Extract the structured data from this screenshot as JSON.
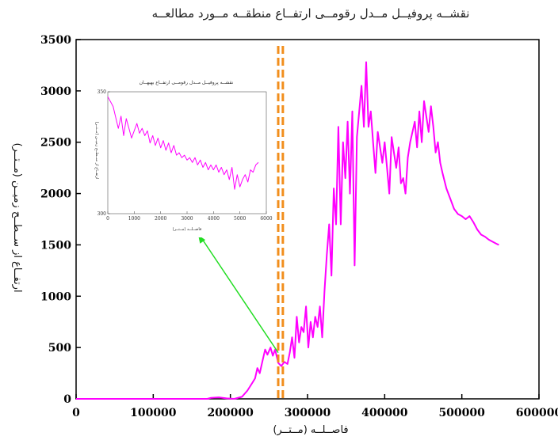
{
  "chart_data": [
    {
      "type": "line",
      "title": "نقشــه پروفیــل مــدل رقومــی ارتفــاع منطقــه مــورد مطالعــه",
      "xlabel": "فاصــلــه (مــتــر)",
      "ylabel": "ارتفــاع از ســطــح زمیــن (مــتــر)",
      "xlim": [
        0,
        600000
      ],
      "ylim": [
        0,
        3500
      ],
      "xticks": [
        "0",
        "100000",
        "200000",
        "300000",
        "400000",
        "500000",
        "600000"
      ],
      "yticks": [
        "0",
        "500",
        "1000",
        "1500",
        "2000",
        "2500",
        "3000",
        "3500"
      ],
      "series": [
        {
          "color": "#ff00ff",
          "x": [
            0,
            170000,
            175000,
            185000,
            195000,
            205000,
            215000,
            222000,
            228000,
            232000,
            235000,
            238000,
            242000,
            245000,
            248000,
            252000,
            255000,
            258000,
            262000,
            266000,
            270000,
            274000,
            277000,
            280000,
            283000,
            286000,
            289000,
            292000,
            295000,
            298000,
            301000,
            304000,
            307000,
            310000,
            313000,
            316000,
            319000,
            322000,
            325000,
            328000,
            331000,
            334000,
            337000,
            340000,
            343000,
            346000,
            349000,
            352000,
            355000,
            358000,
            361000,
            364000,
            367000,
            370000,
            373000,
            376000,
            379000,
            382000,
            385000,
            388000,
            391000,
            394000,
            397000,
            400000,
            403000,
            406000,
            409000,
            412000,
            415000,
            418000,
            421000,
            424000,
            427000,
            430000,
            433000,
            436000,
            439000,
            442000,
            445000,
            448000,
            451000,
            454000,
            457000,
            460000,
            463000,
            466000,
            469000,
            472000,
            475000,
            480000,
            485000,
            490000,
            495000,
            500000,
            505000,
            510000,
            515000,
            520000,
            525000,
            530000,
            535000,
            540000,
            545000,
            548000
          ],
          "y": [
            0,
            0,
            10,
            15,
            5,
            0,
            20,
            80,
            150,
            200,
            300,
            250,
            380,
            480,
            430,
            500,
            420,
            480,
            350,
            320,
            360,
            340,
            450,
            600,
            400,
            800,
            550,
            700,
            650,
            900,
            500,
            750,
            600,
            800,
            700,
            900,
            600,
            1050,
            1400,
            1700,
            1200,
            2050,
            1700,
            2650,
            1700,
            2500,
            2150,
            2700,
            2000,
            2800,
            1300,
            2550,
            2800,
            3050,
            2650,
            3280,
            2650,
            2800,
            2500,
            2200,
            2600,
            2450,
            2300,
            2500,
            2250,
            2000,
            2550,
            2400,
            2250,
            2450,
            2100,
            2150,
            2000,
            2350,
            2500,
            2600,
            2700,
            2450,
            2800,
            2500,
            2900,
            2750,
            2600,
            2850,
            2650,
            2400,
            2500,
            2300,
            2200,
            2050,
            1950,
            1850,
            1800,
            1780,
            1750,
            1780,
            1720,
            1650,
            1600,
            1580,
            1550,
            1530,
            1510,
            1500
          ]
        }
      ]
    },
    {
      "type": "line",
      "title": "نقشــه پروفیــل مــدل رقومــی ارتفــاع بهبهــان",
      "xlabel": "فاصــلــه (مــتــر)",
      "ylabel": "ارتفــاع از ســطــح زمیــن (مــتــر)",
      "xlim": [
        0,
        6000
      ],
      "ylim": [
        300,
        350
      ],
      "xticks": [
        "0",
        "1000",
        "2000",
        "3000",
        "4000",
        "5000",
        "6000"
      ],
      "yticks": [
        "300",
        "350"
      ],
      "series": [
        {
          "color": "#ff00ff",
          "x": [
            0,
            200,
            400,
            500,
            600,
            700,
            800,
            900,
            1000,
            1100,
            1200,
            1300,
            1400,
            1500,
            1600,
            1700,
            1800,
            1900,
            2000,
            2100,
            2200,
            2300,
            2400,
            2500,
            2600,
            2700,
            2800,
            2900,
            3000,
            3100,
            3200,
            3300,
            3400,
            3500,
            3600,
            3700,
            3800,
            3900,
            4000,
            4100,
            4200,
            4300,
            4400,
            4500,
            4600,
            4700,
            4800,
            4900,
            5000,
            5100,
            5200,
            5300,
            5400,
            5500,
            5600,
            5700
          ],
          "y": [
            348,
            344,
            335,
            340,
            332,
            339,
            335,
            331,
            334,
            337,
            333,
            335,
            332,
            334,
            329,
            332,
            328,
            331,
            327,
            330,
            326,
            329,
            325,
            328,
            324,
            325,
            323,
            324,
            322,
            323,
            321,
            323,
            320,
            322,
            319,
            321,
            318,
            320,
            318,
            320,
            317,
            319,
            316,
            318,
            314,
            319,
            310,
            316,
            311,
            314,
            316,
            313,
            318,
            317,
            320,
            321
          ]
        }
      ]
    },
    {
      "type": "annotation",
      "dashed_vertical_lines": {
        "color": "#f28e1c",
        "x": [
          262000,
          268000
        ]
      },
      "arrow": {
        "color": "#22dd22"
      }
    }
  ]
}
